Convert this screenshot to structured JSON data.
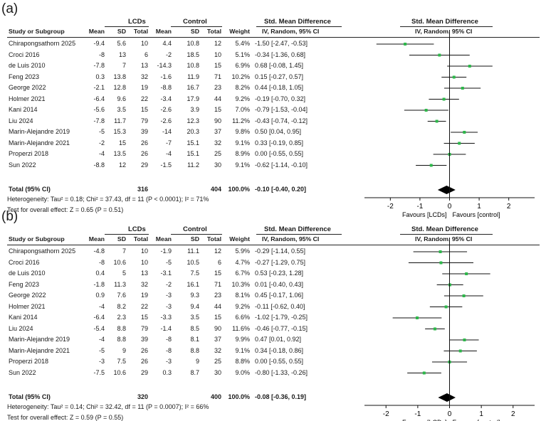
{
  "headers": {
    "group1": "LCDs",
    "group2": "Control",
    "study": "Study or Subgroup",
    "mean": "Mean",
    "sd": "SD",
    "total": "Total",
    "weight": "Weight",
    "smd_title": "Std. Mean Difference",
    "smd_sub": "IV, Random, 95% CI"
  },
  "chart_data": [
    {
      "type": "forest",
      "panel_label": "(a)",
      "x_ticks": [
        -2,
        -1,
        0,
        1,
        2
      ],
      "xlim": [
        -2.2,
        2.2
      ],
      "favours_left": "Favours [LCDs]",
      "favours_right": "Favours [control]",
      "marker_color": "#2db84a",
      "studies": [
        {
          "study": "Chirapongsathorn 2025",
          "m1": "-9.4",
          "sd1": "5.6",
          "n1": "10",
          "m2": "4.4",
          "sd2": "10.8",
          "n2": "12",
          "weight": "5.4%",
          "ci_text": "-1.50 [-2.47, -0.53]",
          "est": -1.5,
          "lo": -2.47,
          "hi": -0.53
        },
        {
          "study": "Croci 2016",
          "m1": "-8",
          "sd1": "13",
          "n1": "6",
          "m2": "-2",
          "sd2": "18.5",
          "n2": "10",
          "weight": "5.1%",
          "ci_text": "-0.34 [-1.36, 0.68]",
          "est": -0.34,
          "lo": -1.36,
          "hi": 0.68
        },
        {
          "study": "de Luis 2010",
          "m1": "-7.8",
          "sd1": "7",
          "n1": "13",
          "m2": "-14.3",
          "sd2": "10.8",
          "n2": "15",
          "weight": "6.9%",
          "ci_text": "0.68 [-0.08, 1.45]",
          "est": 0.68,
          "lo": -0.08,
          "hi": 1.45
        },
        {
          "study": "Feng 2023",
          "m1": "0.3",
          "sd1": "13.8",
          "n1": "32",
          "m2": "-1.6",
          "sd2": "11.9",
          "n2": "71",
          "weight": "10.2%",
          "ci_text": "0.15 [-0.27, 0.57]",
          "est": 0.15,
          "lo": -0.27,
          "hi": 0.57
        },
        {
          "study": "George 2022",
          "m1": "-2.1",
          "sd1": "12.8",
          "n1": "19",
          "m2": "-8.8",
          "sd2": "16.7",
          "n2": "23",
          "weight": "8.2%",
          "ci_text": "0.44 [-0.18, 1.05]",
          "est": 0.44,
          "lo": -0.18,
          "hi": 1.05
        },
        {
          "study": "Holmer 2021",
          "m1": "-6.4",
          "sd1": "9.6",
          "n1": "22",
          "m2": "-3.4",
          "sd2": "17.9",
          "n2": "44",
          "weight": "9.2%",
          "ci_text": "-0.19 [-0.70, 0.32]",
          "est": -0.19,
          "lo": -0.7,
          "hi": 0.32
        },
        {
          "study": "Kani  2014",
          "m1": "-5.6",
          "sd1": "3.5",
          "n1": "15",
          "m2": "-2.6",
          "sd2": "3.9",
          "n2": "15",
          "weight": "7.0%",
          "ci_text": "-0.79 [-1.53, -0.04]",
          "est": -0.79,
          "lo": -1.53,
          "hi": -0.04
        },
        {
          "study": "Liu 2024",
          "m1": "-7.8",
          "sd1": "11.7",
          "n1": "79",
          "m2": "-2.6",
          "sd2": "12.3",
          "n2": "90",
          "weight": "11.2%",
          "ci_text": "-0.43 [-0.74, -0.12]",
          "est": -0.43,
          "lo": -0.74,
          "hi": -0.12
        },
        {
          "study": "Marin-Alejandre 2019",
          "m1": "-5",
          "sd1": "15.3",
          "n1": "39",
          "m2": "-14",
          "sd2": "20.3",
          "n2": "37",
          "weight": "9.8%",
          "ci_text": "0.50 [0.04, 0.95]",
          "est": 0.5,
          "lo": 0.04,
          "hi": 0.95
        },
        {
          "study": "Marin-Alejandre 2021",
          "m1": "-2",
          "sd1": "15",
          "n1": "26",
          "m2": "-7",
          "sd2": "15.1",
          "n2": "32",
          "weight": "9.1%",
          "ci_text": "0.33 [-0.19, 0.85]",
          "est": 0.33,
          "lo": -0.19,
          "hi": 0.85
        },
        {
          "study": "Properzi 2018",
          "m1": "-4",
          "sd1": "13.5",
          "n1": "26",
          "m2": "-4",
          "sd2": "15.1",
          "n2": "25",
          "weight": "8.9%",
          "ci_text": "0.00 [-0.55, 0.55]",
          "est": 0.0,
          "lo": -0.55,
          "hi": 0.55
        },
        {
          "study": "Sun 2022",
          "m1": "-8.8",
          "sd1": "12",
          "n1": "29",
          "m2": "-1.5",
          "sd2": "11.2",
          "n2": "30",
          "weight": "9.1%",
          "ci_text": "-0.62 [-1.14, -0.10]",
          "est": -0.62,
          "lo": -1.14,
          "hi": -0.1
        }
      ],
      "total": {
        "label": "Total (95% CI)",
        "n1": "316",
        "n2": "404",
        "weight": "100.0%",
        "ci_text": "-0.10 [-0.40, 0.20]",
        "est": -0.1,
        "lo": -0.4,
        "hi": 0.2
      },
      "heterogeneity": "Heterogeneity: Tau² = 0.18; Chi² = 37.43, df = 11 (P < 0.0001); I² = 71%",
      "overall": "Test for overall effect: Z = 0.65 (P = 0.51)"
    },
    {
      "type": "forest",
      "panel_label": "(b)",
      "x_ticks": [
        -2,
        -1,
        0,
        1,
        2
      ],
      "xlim": [
        -2.05,
        2.05
      ],
      "favours_left": "Favours [LCDs]",
      "favours_right": "Favours [control]",
      "marker_color": "#2db84a",
      "studies": [
        {
          "study": "Chirapongsathorn 2025",
          "m1": "-4.8",
          "sd1": "7",
          "n1": "10",
          "m2": "-1.9",
          "sd2": "11.1",
          "n2": "12",
          "weight": "5.9%",
          "ci_text": "-0.29 [-1.14, 0.55]",
          "est": -0.29,
          "lo": -1.14,
          "hi": 0.55
        },
        {
          "study": "Croci 2016",
          "m1": "-8",
          "sd1": "10.6",
          "n1": "10",
          "m2": "-5",
          "sd2": "10.5",
          "n2": "6",
          "weight": "4.7%",
          "ci_text": "-0.27 [-1.29, 0.75]",
          "est": -0.27,
          "lo": -1.29,
          "hi": 0.75
        },
        {
          "study": "de Luis 2010",
          "m1": "0.4",
          "sd1": "5",
          "n1": "13",
          "m2": "-3.1",
          "sd2": "7.5",
          "n2": "15",
          "weight": "6.7%",
          "ci_text": "0.53 [-0.23, 1.28]",
          "est": 0.53,
          "lo": -0.23,
          "hi": 1.28
        },
        {
          "study": "Feng 2023",
          "m1": "-1.8",
          "sd1": "11.3",
          "n1": "32",
          "m2": "-2",
          "sd2": "16.1",
          "n2": "71",
          "weight": "10.3%",
          "ci_text": "0.01 [-0.40, 0.43]",
          "est": 0.01,
          "lo": -0.4,
          "hi": 0.43
        },
        {
          "study": "George 2022",
          "m1": "0.9",
          "sd1": "7.6",
          "n1": "19",
          "m2": "-3",
          "sd2": "9.3",
          "n2": "23",
          "weight": "8.1%",
          "ci_text": "0.45 [-0.17, 1.06]",
          "est": 0.45,
          "lo": -0.17,
          "hi": 1.06
        },
        {
          "study": "Holmer 2021",
          "m1": "-4",
          "sd1": "8.2",
          "n1": "22",
          "m2": "-3",
          "sd2": "9.4",
          "n2": "44",
          "weight": "9.2%",
          "ci_text": "-0.11 [-0.62, 0.40]",
          "est": -0.11,
          "lo": -0.62,
          "hi": 0.4
        },
        {
          "study": "Kani  2014",
          "m1": "-6.4",
          "sd1": "2.3",
          "n1": "15",
          "m2": "-3.3",
          "sd2": "3.5",
          "n2": "15",
          "weight": "6.6%",
          "ci_text": "-1.02 [-1.79, -0.25]",
          "est": -1.02,
          "lo": -1.79,
          "hi": -0.25
        },
        {
          "study": "Liu 2024",
          "m1": "-5.4",
          "sd1": "8.8",
          "n1": "79",
          "m2": "-1.4",
          "sd2": "8.5",
          "n2": "90",
          "weight": "11.6%",
          "ci_text": "-0.46 [-0.77, -0.15]",
          "est": -0.46,
          "lo": -0.77,
          "hi": -0.15
        },
        {
          "study": "Marin-Alejandre 2019",
          "m1": "-4",
          "sd1": "8.8",
          "n1": "39",
          "m2": "-8",
          "sd2": "8.1",
          "n2": "37",
          "weight": "9.9%",
          "ci_text": "0.47 [0.01, 0.92]",
          "est": 0.47,
          "lo": 0.01,
          "hi": 0.92
        },
        {
          "study": "Marin-Alejandre 2021",
          "m1": "-5",
          "sd1": "9",
          "n1": "26",
          "m2": "-8",
          "sd2": "8.8",
          "n2": "32",
          "weight": "9.1%",
          "ci_text": "0.34 [-0.18, 0.86]",
          "est": 0.34,
          "lo": -0.18,
          "hi": 0.86
        },
        {
          "study": "Properzi 2018",
          "m1": "-3",
          "sd1": "7.5",
          "n1": "26",
          "m2": "-3",
          "sd2": "9",
          "n2": "25",
          "weight": "8.8%",
          "ci_text": "0.00 [-0.55, 0.55]",
          "est": 0.0,
          "lo": -0.55,
          "hi": 0.55
        },
        {
          "study": "Sun 2022",
          "m1": "-7.5",
          "sd1": "10.6",
          "n1": "29",
          "m2": "0.3",
          "sd2": "8.7",
          "n2": "30",
          "weight": "9.0%",
          "ci_text": "-0.80 [-1.33, -0.26]",
          "est": -0.8,
          "lo": -1.33,
          "hi": -0.26
        }
      ],
      "total": {
        "label": "Total (95% CI)",
        "n1": "320",
        "n2": "400",
        "weight": "100.0%",
        "ci_text": "-0.08 [-0.36, 0.19]",
        "est": -0.08,
        "lo": -0.36,
        "hi": 0.19
      },
      "heterogeneity": "Heterogeneity: Tau² = 0.14; Chi² = 32.42, df = 11 (P = 0.0007); I² = 66%",
      "overall": "Test for overall effect: Z = 0.59 (P = 0.55)"
    }
  ]
}
